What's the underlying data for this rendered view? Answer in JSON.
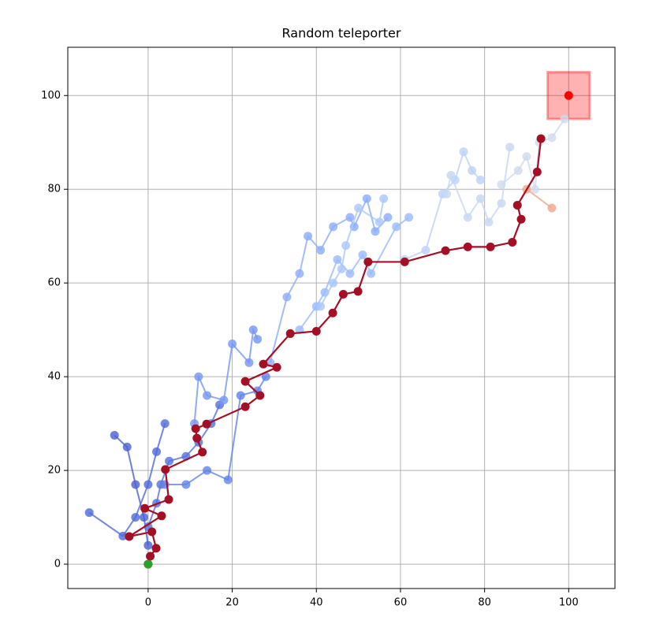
{
  "chart_data": {
    "type": "line",
    "title": "Random teleporter",
    "xlim": [
      -19.1,
      111
    ],
    "ylim": [
      -5.2,
      110.3
    ],
    "xticks": [
      0,
      20,
      40,
      60,
      80,
      100
    ],
    "yticks": [
      0,
      20,
      40,
      60,
      80,
      100
    ],
    "grid": true,
    "goal_region": {
      "x": [
        95,
        105
      ],
      "y": [
        95,
        105
      ],
      "color": "#ff0000"
    },
    "series": [
      {
        "color": "#4a5fd1",
        "x": [
          0,
          -1,
          -3,
          -5,
          -8
        ],
        "values": [
          4,
          10,
          17,
          25,
          27.5
        ]
      },
      {
        "color": "#5470de",
        "x": [
          0,
          2,
          3,
          5,
          9,
          12,
          15,
          17
        ],
        "values": [
          8,
          13,
          17,
          22,
          23,
          26,
          30,
          34
        ]
      },
      {
        "color": "#4f69d9",
        "x": [
          -14,
          -6,
          -3,
          0,
          2,
          4
        ],
        "values": [
          11,
          6,
          10,
          17,
          24,
          30
        ]
      },
      {
        "color": "#6282ea",
        "x": [
          4,
          9,
          14,
          19,
          22,
          26,
          28
        ],
        "values": [
          17,
          17,
          20,
          18,
          36,
          37,
          40
        ]
      },
      {
        "color": "#7396f5",
        "x": [
          11,
          12,
          14,
          18,
          20,
          24,
          25,
          26
        ],
        "values": [
          30,
          40,
          36,
          35,
          47,
          43,
          50,
          48
        ]
      },
      {
        "color": "#8badfd",
        "x": [
          29,
          33,
          36,
          38,
          41,
          44,
          48,
          49,
          52,
          54,
          57
        ],
        "values": [
          43,
          57,
          62,
          70,
          67,
          72,
          74,
          72,
          78,
          71,
          74
        ]
      },
      {
        "color": "#99bafe",
        "x": [
          36,
          40,
          42,
          45,
          48,
          51,
          53,
          59,
          62
        ],
        "values": [
          50,
          55,
          58,
          65,
          62,
          66,
          62,
          72,
          74
        ]
      },
      {
        "color": "#aac7fd",
        "x": [
          41,
          44,
          46,
          47,
          50,
          55,
          56
        ],
        "values": [
          55,
          60,
          63,
          68,
          76,
          73,
          78
        ]
      },
      {
        "color": "#bcd2f7",
        "x": [
          61,
          66,
          70,
          73,
          75,
          77,
          79
        ],
        "values": [
          65,
          67,
          79,
          82,
          88,
          84,
          82
        ]
      },
      {
        "color": "#c7d7f0",
        "x": [
          71,
          72,
          76,
          79,
          81,
          84,
          86
        ],
        "values": [
          79,
          83,
          74,
          78,
          73,
          77,
          89
        ]
      },
      {
        "color": "#d0dbeb",
        "x": [
          84,
          88,
          90,
          92,
          93,
          96,
          99
        ],
        "values": [
          81,
          84,
          87,
          80,
          90,
          91,
          95
        ]
      },
      {
        "color": "#f0a688",
        "x": [
          90,
          96
        ],
        "values": [
          80,
          76
        ]
      },
      {
        "color": "#a50f26",
        "x": [
          0,
          0.5,
          1.9,
          0.9,
          -4.5,
          3.2,
          -0.8,
          4.9,
          4.1,
          12.9,
          11.6,
          11.3,
          13.9,
          23.1,
          26.6,
          23.1,
          30.6,
          27.4,
          33.8,
          40,
          43.9,
          46.4,
          49.9,
          52.3,
          61,
          70.7,
          76,
          81.4,
          86.6,
          88.7,
          87.8,
          92.5,
          93.4
        ],
        "values": [
          0,
          1.7,
          3.4,
          6.9,
          5.9,
          10.3,
          11.9,
          13.8,
          20.2,
          23.9,
          26.9,
          28.9,
          29.9,
          33.6,
          36,
          39,
          42,
          42.7,
          49.2,
          49.7,
          53.6,
          57.6,
          58.2,
          64.5,
          64.5,
          66.9,
          67.7,
          67.7,
          68.7,
          73.6,
          76.6,
          83.7,
          90.8
        ]
      },
      {
        "color": "#2ca02c",
        "x": [
          0
        ],
        "values": [
          0
        ]
      },
      {
        "color": "#ff0000",
        "x": [
          100
        ],
        "values": [
          100
        ]
      }
    ]
  }
}
